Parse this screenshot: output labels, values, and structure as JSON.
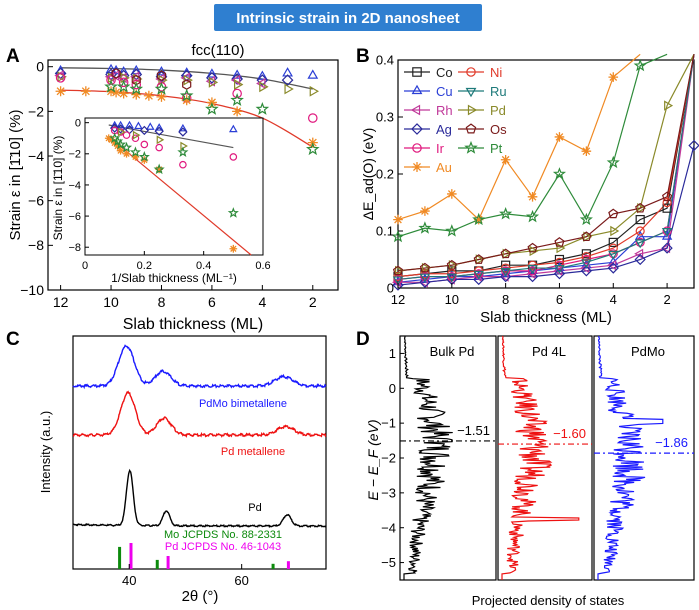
{
  "header": {
    "title": "Intrinsic strain in 2D nanosheet"
  },
  "panel_labels": [
    "A",
    "B",
    "C",
    "D"
  ],
  "chart_data": [
    {
      "id": "A",
      "type": "scatter",
      "title": "fcc(110)",
      "xlabel": "Slab thickness (ML)",
      "ylabel": "Strain ε in [1̄10] (%)",
      "xlim": [
        12.5,
        1
      ],
      "ylim": [
        -10,
        0.3
      ],
      "xticks": [
        12,
        10,
        8,
        6,
        4,
        2
      ],
      "yticks": [
        0,
        -2,
        -4,
        -6,
        -8,
        -10
      ],
      "series": [
        {
          "name": "Cu",
          "marker": "triangle-up",
          "color": "#2b3fd6",
          "x": [
            12,
            10,
            9.8,
            9.5,
            9,
            8,
            7,
            6,
            5,
            4,
            3,
            2
          ],
          "y": [
            -0.2,
            -0.15,
            -0.2,
            -0.25,
            -0.2,
            -0.25,
            -0.3,
            -0.35,
            -0.4,
            -0.45,
            -0.3,
            -0.4
          ]
        },
        {
          "name": "Ag",
          "marker": "diamond",
          "color": "#2a2a9a",
          "x": [
            12,
            10,
            9.8,
            9.5,
            9,
            8,
            7,
            6,
            5,
            4,
            3
          ],
          "y": [
            -0.3,
            -0.35,
            -0.3,
            -0.4,
            -0.35,
            -0.45,
            -0.4,
            -0.5,
            -0.55,
            -0.6,
            -0.6
          ]
        },
        {
          "name": "Rh",
          "marker": "triangle-left",
          "color": "#c0399a",
          "x": [
            12,
            10,
            9.8,
            9.5,
            9,
            8,
            7,
            6,
            5,
            4
          ],
          "y": [
            -0.4,
            -0.45,
            -0.4,
            -0.5,
            -0.45,
            -0.55,
            -0.5,
            -0.65,
            -0.6,
            -0.75
          ]
        },
        {
          "name": "Pd",
          "marker": "triangle-right",
          "color": "#8a8a2a",
          "x": [
            12,
            10,
            9.5,
            9,
            8,
            7,
            6,
            5,
            4,
            3,
            2
          ],
          "y": [
            -0.45,
            -0.5,
            -0.5,
            -0.55,
            -0.6,
            -0.6,
            -0.7,
            -0.8,
            -0.9,
            -1.0,
            -1.1
          ]
        },
        {
          "name": "Ir",
          "marker": "circle",
          "color": "#e0197e",
          "x": [
            12,
            10,
            9.5,
            9,
            8,
            7,
            6,
            5,
            2
          ],
          "y": [
            -0.5,
            -0.6,
            -0.7,
            -0.8,
            -0.9,
            -1.4,
            -2.5,
            -1.2,
            -2.3
          ]
        },
        {
          "name": "Os",
          "marker": "hexagon",
          "color": "#7a1a1a",
          "x": [
            9.8,
            9,
            8,
            7,
            6
          ],
          "y": [
            -0.3,
            -0.6,
            -0.4,
            -0.8,
            -2.7
          ]
        },
        {
          "name": "Au",
          "marker": "asterisk",
          "color": "#f08a24",
          "x": [
            12,
            11,
            10,
            9.8,
            9.5,
            9,
            8.5,
            8,
            7,
            6,
            5,
            4,
            2
          ],
          "y": [
            -1.1,
            -1.1,
            -1.1,
            -1.15,
            -1.2,
            -1.25,
            -1.3,
            -1.35,
            -1.5,
            -1.6,
            -2.0,
            -2.3,
            -3.4
          ]
        },
        {
          "name": "Pt",
          "marker": "star",
          "color": "#2e8b3a",
          "x": [
            10,
            9.5,
            9,
            8,
            7,
            6,
            5,
            4,
            2
          ],
          "y": [
            -0.9,
            -0.9,
            -1.0,
            -1.0,
            -1.3,
            -1.9,
            -1.5,
            -1.9,
            -3.7
          ]
        }
      ],
      "fits": [
        {
          "name": "black fit",
          "color": "#555555",
          "x": [
            12,
            10,
            8,
            6,
            4,
            2
          ],
          "y": [
            -0.05,
            -0.08,
            -0.15,
            -0.3,
            -0.55,
            -1.0
          ]
        },
        {
          "name": "red fit",
          "color": "#e03a2a",
          "x": [
            12,
            10,
            8,
            6,
            4,
            2
          ],
          "y": [
            -1.05,
            -1.12,
            -1.3,
            -1.65,
            -2.3,
            -3.6
          ]
        }
      ],
      "inset": {
        "xlabel": "1/Slab thickness (ML⁻¹)",
        "ylabel": "Strain ε in [1̄10] (%)",
        "xlim": [
          0,
          0.6
        ],
        "ylim": [
          -8.5,
          0.3
        ],
        "xticks": [
          0.0,
          0.2,
          0.4,
          0.6
        ],
        "yticks": [
          0,
          -2,
          -4,
          -6,
          -8
        ],
        "series": [
          {
            "name": "Cu",
            "marker": "triangle-up",
            "color": "#2b3fd6",
            "x": [
              0.1,
              0.12,
              0.15,
              0.18,
              0.22,
              0.25,
              0.33,
              0.5
            ],
            "y": [
              -0.2,
              -0.2,
              -0.2,
              -0.25,
              -0.3,
              -0.35,
              -0.4,
              -0.45
            ]
          },
          {
            "name": "Ag",
            "marker": "diamond",
            "color": "#2a2a9a",
            "x": [
              0.1,
              0.12,
              0.15,
              0.2,
              0.25,
              0.33
            ],
            "y": [
              -0.35,
              -0.4,
              -0.45,
              -0.5,
              -0.55,
              -0.6
            ]
          },
          {
            "name": "Ir",
            "marker": "circle",
            "color": "#e0197e",
            "x": [
              0.1,
              0.12,
              0.14,
              0.17,
              0.2,
              0.25,
              0.33,
              0.5
            ],
            "y": [
              -0.5,
              -0.6,
              -0.8,
              -1.0,
              -1.4,
              -1.6,
              -2.7,
              -2.2
            ]
          },
          {
            "name": "Pd",
            "marker": "triangle-right",
            "color": "#8a8a2a",
            "x": [
              0.12,
              0.17,
              0.25,
              0.33
            ],
            "y": [
              -0.6,
              -0.8,
              -1.1,
              -1.5
            ]
          },
          {
            "name": "Au",
            "marker": "asterisk",
            "color": "#f08a24",
            "x": [
              0.08,
              0.09,
              0.1,
              0.11,
              0.12,
              0.14,
              0.17,
              0.2,
              0.25,
              0.5
            ],
            "y": [
              -1.0,
              -1.1,
              -1.3,
              -1.5,
              -1.8,
              -2.0,
              -2.2,
              -2.4,
              -3.0,
              -8.1
            ]
          },
          {
            "name": "Pt",
            "marker": "star",
            "color": "#2e8b3a",
            "x": [
              0.1,
              0.11,
              0.12,
              0.14,
              0.17,
              0.2,
              0.25,
              0.33,
              0.5
            ],
            "y": [
              -1.0,
              -1.2,
              -1.4,
              -1.6,
              -1.9,
              -2.2,
              -3.0,
              -1.9,
              -5.8
            ]
          }
        ],
        "fits": [
          {
            "name": "black fit",
            "color": "#555555",
            "x": [
              0.08,
              0.5
            ],
            "y": [
              -0.15,
              -1.6
            ]
          },
          {
            "name": "red fit",
            "color": "#e03a2a",
            "x": [
              0.08,
              0.56
            ],
            "y": [
              -0.9,
              -8.5
            ]
          }
        ]
      }
    },
    {
      "id": "B",
      "type": "line",
      "xlabel": "Slab thickness (ML)",
      "ylabel": "ΔE_ad(O) (eV)",
      "xlim": [
        12,
        1
      ],
      "ylim": [
        0,
        0.4
      ],
      "xticks": [
        12,
        10,
        8,
        6,
        4,
        2
      ],
      "yticks": [
        0.0,
        0.1,
        0.2,
        0.3,
        0.4
      ],
      "x": [
        12,
        11,
        10,
        9,
        8,
        7,
        6,
        5,
        4,
        3,
        2,
        1
      ],
      "series": [
        {
          "name": "Co",
          "marker": "square",
          "color": "#222222",
          "values": [
            0.02,
            0.025,
            0.03,
            0.03,
            0.04,
            0.04,
            0.05,
            0.06,
            0.08,
            0.12,
            0.14,
            0.41
          ]
        },
        {
          "name": "Cu",
          "marker": "triangle-up",
          "color": "#2b3fd6",
          "values": [
            0.01,
            0.015,
            0.02,
            0.02,
            0.025,
            0.03,
            0.035,
            0.04,
            0.045,
            0.09,
            0.09,
            0.41
          ]
        },
        {
          "name": "Rh",
          "marker": "triangle-left",
          "color": "#c0399a",
          "values": [
            0.01,
            0.01,
            0.015,
            0.02,
            0.02,
            0.025,
            0.03,
            0.035,
            0.04,
            0.06,
            0.07,
            0.41
          ]
        },
        {
          "name": "Ag",
          "marker": "diamond",
          "color": "#2a2a9a",
          "values": [
            0.005,
            0.01,
            0.015,
            0.015,
            0.02,
            0.02,
            0.025,
            0.03,
            0.035,
            0.05,
            0.07,
            0.25
          ]
        },
        {
          "name": "Ir",
          "marker": "circle",
          "color": "#e0197e",
          "values": [
            0.015,
            0.02,
            0.02,
            0.025,
            0.03,
            0.03,
            0.04,
            0.05,
            0.06,
            0.08,
            0.1,
            0.41
          ]
        },
        {
          "name": "Au",
          "marker": "asterisk",
          "color": "#f08a24",
          "values": [
            0.12,
            0.135,
            0.165,
            0.12,
            0.225,
            0.16,
            0.265,
            0.24,
            0.37,
            0.41,
            null,
            null
          ]
        },
        {
          "name": "Ni",
          "marker": "circle",
          "color": "#e03a2a",
          "values": [
            0.02,
            0.025,
            0.025,
            0.03,
            0.035,
            0.04,
            0.045,
            0.055,
            0.07,
            0.1,
            0.15,
            0.41
          ]
        },
        {
          "name": "Ru",
          "marker": "triangle-down",
          "color": "#1e7a7a",
          "values": [
            0.015,
            0.02,
            0.02,
            0.025,
            0.03,
            0.035,
            0.035,
            0.045,
            0.06,
            0.08,
            0.1,
            0.41
          ]
        },
        {
          "name": "Pd",
          "marker": "triangle-right",
          "color": "#8a8a2a",
          "values": [
            0.03,
            0.035,
            0.04,
            0.05,
            0.06,
            0.065,
            0.07,
            0.09,
            0.1,
            0.14,
            0.32,
            0.41
          ]
        },
        {
          "name": "Os",
          "marker": "pentagon",
          "color": "#7a1a1a",
          "values": [
            0.03,
            0.035,
            0.04,
            0.05,
            0.06,
            0.07,
            0.08,
            0.09,
            0.13,
            0.14,
            0.16,
            0.41
          ]
        },
        {
          "name": "Pt",
          "marker": "star",
          "color": "#2e8b3a",
          "values": [
            0.09,
            0.105,
            0.1,
            0.12,
            0.13,
            0.125,
            0.2,
            0.12,
            0.22,
            0.39,
            0.41,
            null
          ]
        }
      ]
    },
    {
      "id": "C",
      "type": "line",
      "xlabel": "2θ (°)",
      "ylabel": "Intensity (a.u.)",
      "xlim": [
        30,
        75
      ],
      "xticks": [
        40,
        60
      ],
      "series": [
        {
          "name": "PdMo bimetallene",
          "color": "#1a1aff",
          "peaks": [
            {
              "pos": 39.5,
              "height": 0.95,
              "width": 1.4
            },
            {
              "pos": 46.0,
              "height": 0.35,
              "width": 1.4
            },
            {
              "pos": 67.5,
              "height": 0.22,
              "width": 1.6
            }
          ]
        },
        {
          "name": "Pd metallene",
          "color": "#ee1111",
          "peaks": [
            {
              "pos": 39.8,
              "height": 1.0,
              "width": 1.3
            },
            {
              "pos": 46.2,
              "height": 0.4,
              "width": 1.3
            },
            {
              "pos": 67.8,
              "height": 0.2,
              "width": 1.5
            }
          ]
        },
        {
          "name": "Pd",
          "color": "#000000",
          "peaks": [
            {
              "pos": 40.1,
              "height": 2.2,
              "width": 0.6
            },
            {
              "pos": 46.6,
              "height": 0.6,
              "width": 0.6
            },
            {
              "pos": 68.1,
              "height": 0.45,
              "width": 0.7
            }
          ]
        }
      ],
      "references": [
        {
          "name": "Mo JCPDS No. 88-2331",
          "color": "#0c8a0c",
          "lines": [
            {
              "pos": 38.5,
              "h": 0.85
            },
            {
              "pos": 45.2,
              "h": 0.35
            },
            {
              "pos": 65.8,
              "h": 0.2
            }
          ]
        },
        {
          "name": "Pd JCPDS No. 46-1043",
          "color": "#ee00ee",
          "lines": [
            {
              "pos": 40.1,
              "h": 1.0
            },
            {
              "pos": 46.7,
              "h": 0.5
            },
            {
              "pos": 68.1,
              "h": 0.3
            }
          ]
        }
      ]
    },
    {
      "id": "D",
      "type": "line",
      "xlabel": "Projected density of states",
      "ylabel": "E − E_F (eV)",
      "ylim": [
        -5.5,
        1.5
      ],
      "yticks": [
        1,
        0,
        -1,
        -2,
        -3,
        -4,
        -5
      ],
      "subpanels": [
        {
          "name": "Bulk Pd",
          "color": "#000000",
          "d_band_center": -1.51,
          "center_label": "−1.51"
        },
        {
          "name": "Pd 4L",
          "color": "#ee1111",
          "d_band_center": -1.6,
          "center_label": "−1.60"
        },
        {
          "name": "PdMo",
          "color": "#1a1aff",
          "d_band_center": -1.86,
          "center_label": "−1.86"
        }
      ]
    }
  ]
}
